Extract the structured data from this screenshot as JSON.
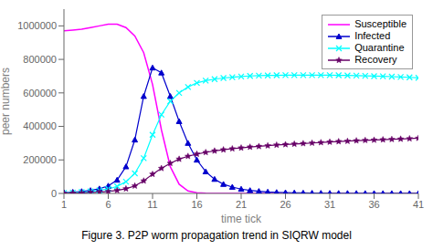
{
  "chart_data": {
    "type": "line",
    "title": "Figure 3. P2P worm propagation trend in SIQRW model",
    "x_label": "time tick",
    "y_label": "peer numbers",
    "x": [
      1,
      2,
      3,
      4,
      5,
      6,
      7,
      8,
      9,
      10,
      11,
      12,
      13,
      14,
      15,
      16,
      17,
      18,
      19,
      20,
      21,
      22,
      23,
      24,
      25,
      26,
      27,
      28,
      29,
      30,
      31,
      32,
      33,
      34,
      35,
      36,
      37,
      38,
      39,
      40,
      41
    ],
    "xlim": [
      1,
      41
    ],
    "xticks": [
      1,
      6,
      11,
      16,
      21,
      26,
      31,
      36,
      41
    ],
    "ylim": [
      0,
      1100000
    ],
    "yticks": [
      0,
      200000,
      400000,
      600000,
      800000,
      1000000
    ],
    "legend": "upper right",
    "series": [
      {
        "name": "Susceptible",
        "color": "#FF00FF",
        "marker": "none",
        "values": [
          970000,
          975000,
          980000,
          990000,
          1000000,
          1010000,
          1010000,
          990000,
          940000,
          840000,
          650000,
          380000,
          160000,
          55000,
          15000,
          4000,
          1000,
          300,
          80,
          20,
          5,
          1,
          0,
          0,
          0,
          0,
          0,
          0,
          0,
          0,
          0,
          0,
          0,
          0,
          0,
          0,
          0,
          0,
          0,
          0,
          0
        ]
      },
      {
        "name": "Infected",
        "color": "#0000CC",
        "marker": "triangle",
        "values": [
          5000,
          8000,
          12000,
          18000,
          28000,
          45000,
          80000,
          160000,
          320000,
          580000,
          750000,
          720000,
          580000,
          430000,
          300000,
          200000,
          130000,
          85000,
          55000,
          38000,
          26000,
          18000,
          13000,
          9000,
          6500,
          5000,
          3800,
          3000,
          2200,
          1800,
          1400,
          1100,
          900,
          700,
          600,
          500,
          400,
          350,
          300,
          250,
          200
        ]
      },
      {
        "name": "Quarantine",
        "color": "#00FFFF",
        "marker": "x",
        "values": [
          3000,
          5000,
          8000,
          12000,
          18000,
          27000,
          42000,
          70000,
          120000,
          210000,
          350000,
          470000,
          550000,
          600000,
          635000,
          660000,
          673000,
          682000,
          689000,
          694000,
          698000,
          701000,
          703000,
          704000,
          705000,
          705500,
          706000,
          706000,
          706000,
          706000,
          705500,
          705000,
          704000,
          703000,
          702000,
          700000,
          699000,
          697000,
          695000,
          693000,
          690000
        ]
      },
      {
        "name": "Recovery",
        "color": "#660066",
        "marker": "star",
        "values": [
          1000,
          2000,
          3000,
          5000,
          8000,
          12000,
          18000,
          28000,
          45000,
          75000,
          115000,
          150000,
          180000,
          205000,
          222000,
          235000,
          245000,
          254000,
          261000,
          267000,
          272000,
          277000,
          281000,
          285000,
          289000,
          292000,
          295000,
          298000,
          301000,
          304000,
          307000,
          310000,
          312000,
          315000,
          317000,
          319000,
          321000,
          323000,
          325000,
          327000,
          330000
        ]
      }
    ]
  }
}
